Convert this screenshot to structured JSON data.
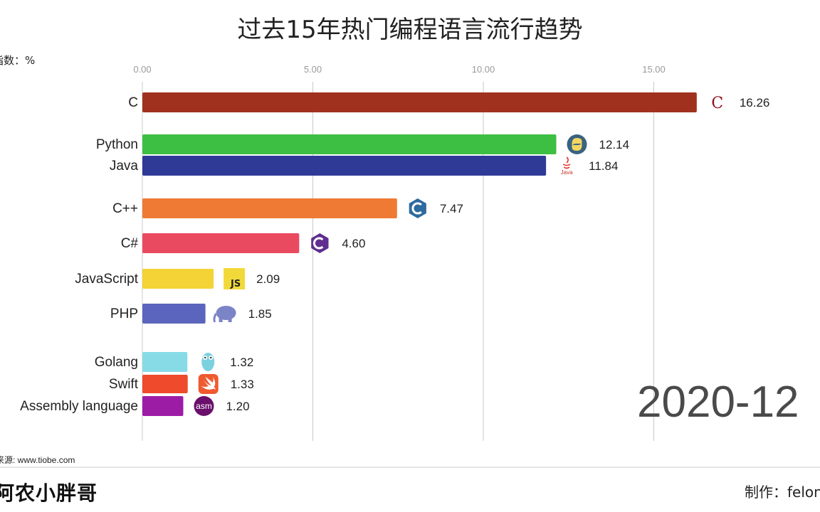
{
  "title": "过去15年热门编程语言流行趋势",
  "unit_label": "指数：%",
  "source_label": "来源: www.tiobe.com",
  "brand_label": "阿农小胖哥",
  "maker_label": "制作：felon",
  "date_label": "2020-12",
  "chart_data": {
    "type": "bar",
    "orientation": "horizontal",
    "title": "过去15年热门编程语言流行趋势",
    "xlabel": "指数：%",
    "ylabel": "",
    "xlim": [
      0,
      16.26
    ],
    "ticks": [
      0,
      5,
      10,
      15
    ],
    "tick_labels": [
      "0.00",
      "5.00",
      "10.00",
      "15.00"
    ],
    "grid": true,
    "categories": [
      "C",
      "Python",
      "Java",
      "C++",
      "C#",
      "JavaScript",
      "PHP",
      "Golang",
      "Swift",
      "Assembly language"
    ],
    "values": [
      16.26,
      12.14,
      11.84,
      7.47,
      4.6,
      2.09,
      1.85,
      1.32,
      1.33,
      1.2
    ],
    "value_labels": [
      "16.26",
      "12.14",
      "11.84",
      "7.47",
      "4.60",
      "2.09",
      "1.85",
      "1.32",
      "1.33",
      "1.20"
    ],
    "colors": [
      "#a0311e",
      "#3dbf44",
      "#2f3a96",
      "#ef7a34",
      "#ea4a60",
      "#f3d335",
      "#5b65bd",
      "#86dbe6",
      "#ef4a2b",
      "#9d1ca6"
    ],
    "icons": [
      "c-logo-icon",
      "python-logo-icon",
      "java-logo-icon",
      "cpp-logo-icon",
      "csharp-logo-icon",
      "javascript-logo-icon",
      "php-elephant-icon",
      "golang-gopher-icon",
      "swift-logo-icon",
      "assembly-asm-icon"
    ],
    "icon_texts": [
      "C",
      "",
      "Java",
      "",
      "",
      "JS",
      "",
      "",
      "",
      "asm"
    ]
  }
}
